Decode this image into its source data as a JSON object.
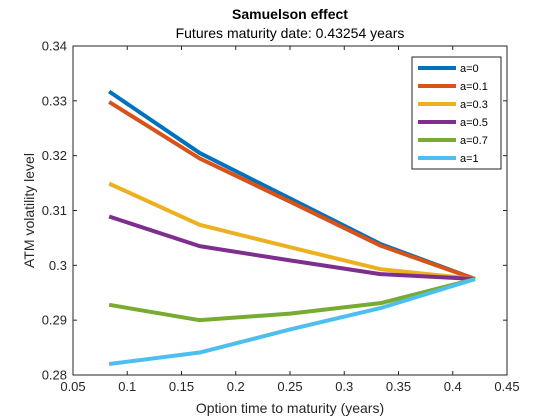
{
  "chart_data": {
    "type": "line",
    "title": "Samuelson effect",
    "subtitle": "Futures maturity date: 0.43254 years",
    "xlabel": "Option time to maturity (years)",
    "ylabel": "ATM volatility level",
    "xlim": [
      0.05,
      0.45
    ],
    "ylim": [
      0.28,
      0.34
    ],
    "xticks": [
      0.05,
      0.1,
      0.15,
      0.2,
      0.25,
      0.3,
      0.35,
      0.4,
      0.45
    ],
    "xtick_labels": [
      "0.05",
      "0.1",
      "0.15",
      "0.2",
      "0.25",
      "0.3",
      "0.35",
      "0.4",
      "0.45"
    ],
    "yticks": [
      0.28,
      0.29,
      0.3,
      0.31,
      0.32,
      0.33,
      0.34
    ],
    "ytick_labels": [
      "0.28",
      "0.29",
      "0.3",
      "0.31",
      "0.32",
      "0.33",
      "0.34"
    ],
    "grid": false,
    "legend_position": "top-right",
    "x": [
      0.0833,
      0.1667,
      0.25,
      0.3333,
      0.4205
    ],
    "series": [
      {
        "name": "a=0",
        "color": "#0072BD",
        "values": [
          0.3317,
          0.3205,
          0.3122,
          0.3039,
          0.2975
        ]
      },
      {
        "name": "a=0.1",
        "color": "#D95319",
        "values": [
          0.3298,
          0.3195,
          0.3116,
          0.3036,
          0.2975
        ]
      },
      {
        "name": "a=0.3",
        "color": "#EDB120",
        "values": [
          0.3149,
          0.3074,
          0.3033,
          0.2993,
          0.2975
        ]
      },
      {
        "name": "a=0.5",
        "color": "#7E2F8E",
        "values": [
          0.3089,
          0.3035,
          0.3009,
          0.2984,
          0.2975
        ]
      },
      {
        "name": "a=0.7",
        "color": "#77AC30",
        "values": [
          0.2928,
          0.29,
          0.2912,
          0.2931,
          0.2975
        ]
      },
      {
        "name": "a=1",
        "color": "#4DBEEE",
        "values": [
          0.282,
          0.2841,
          0.2883,
          0.2922,
          0.2975
        ]
      }
    ]
  }
}
